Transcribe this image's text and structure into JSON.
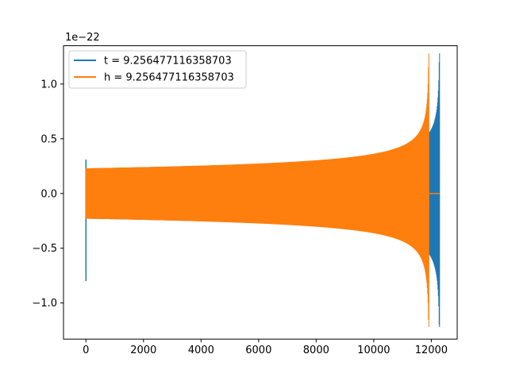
{
  "chart_data": {
    "type": "line",
    "title": "",
    "xlabel": "",
    "ylabel": "",
    "y_offset_text": "1e−22",
    "xlim": [
      -780,
      12900
    ],
    "ylim": [
      -1.33,
      1.35
    ],
    "x_ticks": [
      0,
      2000,
      4000,
      6000,
      8000,
      10000,
      12000
    ],
    "x_tick_labels": [
      "0",
      "2000",
      "4000",
      "6000",
      "8000",
      "10000",
      "12000"
    ],
    "y_ticks": [
      -1.0,
      -0.5,
      0.0,
      0.5,
      1.0
    ],
    "y_tick_labels": [
      "−1.0",
      "−0.5",
      "0.0",
      "0.5",
      "1.0"
    ],
    "grid": false,
    "legend_position": "top-left",
    "series": [
      {
        "name": "t = 9.256477116358703",
        "color": "#1f77b4",
        "x_start": 0,
        "merger_x": 12290,
        "x_end": 12290,
        "plateau_amplitude": 0.23,
        "peak_amplitude": 1.28,
        "peak_min": -1.22,
        "initial_spike": {
          "x": 0,
          "max": 0.31,
          "min": -0.8
        }
      },
      {
        "name": "h = 9.256477116358703",
        "color": "#ff7f0e",
        "x_start": 0,
        "merger_x": 11920,
        "x_end": 12290,
        "plateau_amplitude": 0.23,
        "peak_amplitude": 1.28,
        "peak_min": -1.22,
        "post_merger_value": 0.0
      }
    ]
  }
}
